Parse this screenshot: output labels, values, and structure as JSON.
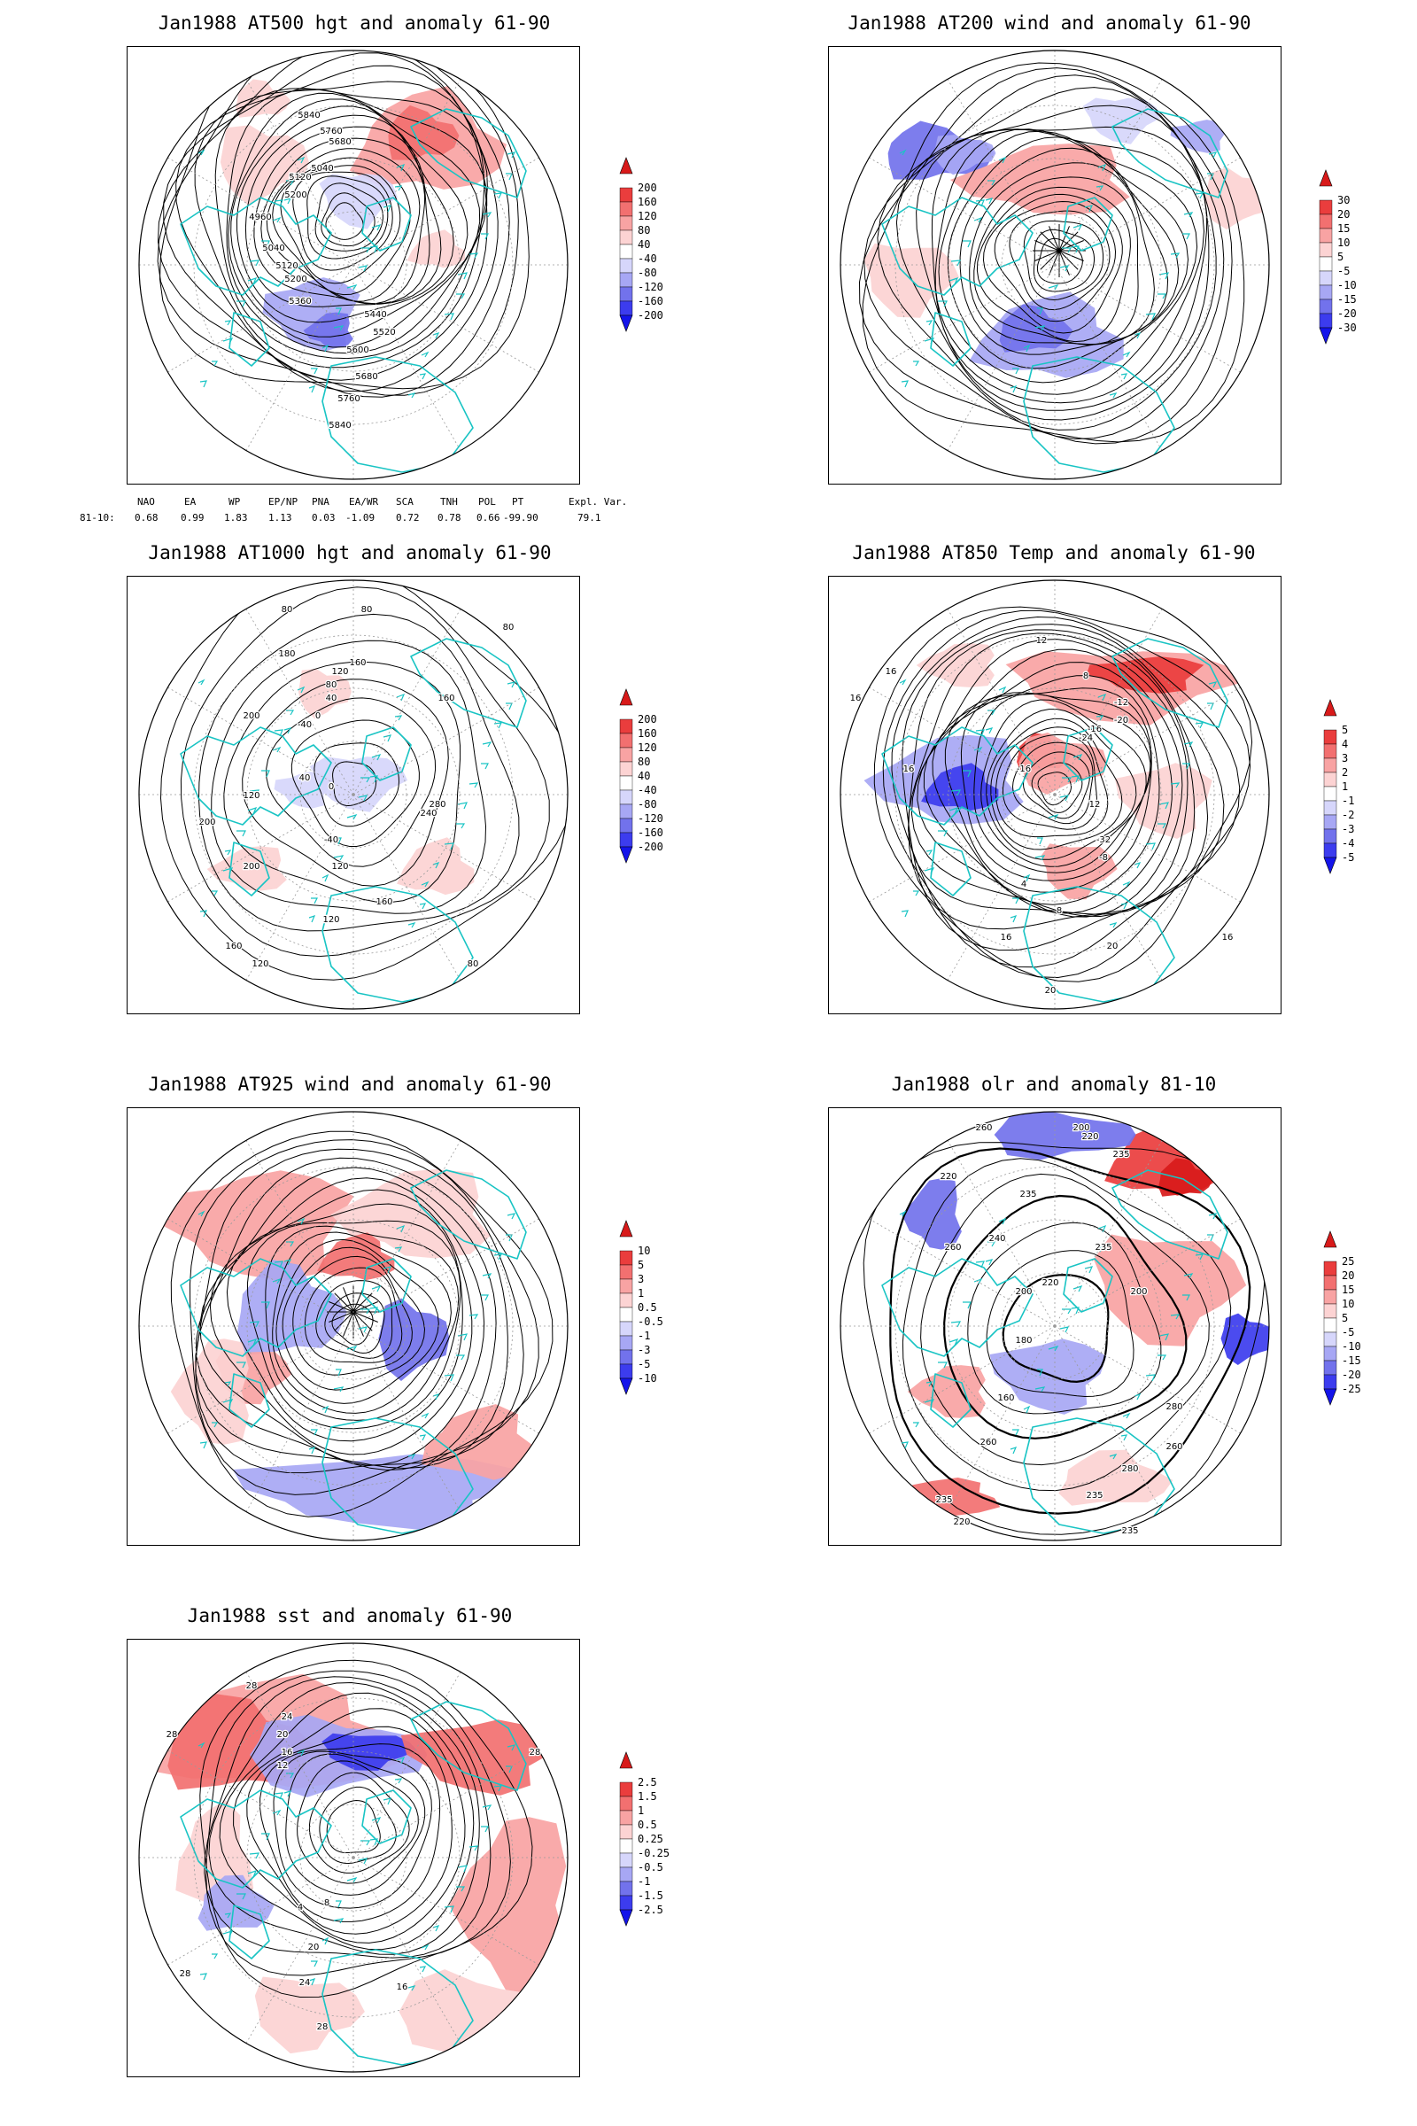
{
  "panels": [
    {
      "id": "z500",
      "title": "Jan1988 AT500 hgt and anomaly 61-90",
      "colorbar_labels": [
        "200",
        "160",
        "120",
        "80",
        "40",
        "-40",
        "-80",
        "-120",
        "-160",
        "-200"
      ],
      "colorbar_colors": [
        "#d81a1a",
        "#ea3d3d",
        "#f27070",
        "#f8a3a3",
        "#fcd3d3",
        "#ffffff",
        "#d6d6fb",
        "#a7a7f4",
        "#7272ec",
        "#3c3cee",
        "#1414ea"
      ],
      "contour_labels": [
        "5840",
        "5760",
        "5680",
        "5040",
        "5120",
        "5200",
        "4960",
        "5040",
        "5120",
        "5200",
        "5360",
        "5440",
        "5520",
        "5600",
        "5680",
        "5760",
        "5840"
      ]
    },
    {
      "id": "u200",
      "title": "Jan1988 AT200 wind and anomaly 61-90",
      "colorbar_labels": [
        "30",
        "20",
        "15",
        "10",
        "5",
        "-5",
        "-10",
        "-15",
        "-20",
        "-30"
      ],
      "colorbar_colors": [
        "#d81a1a",
        "#ea3d3d",
        "#f27070",
        "#f8a3a3",
        "#fcd3d3",
        "#ffffff",
        "#d6d6fb",
        "#a7a7f4",
        "#7272ec",
        "#3c3cee",
        "#1414ea"
      ],
      "contour_labels": []
    },
    {
      "id": "z1000",
      "title": "Jan1988 AT1000 hgt and anomaly 61-90",
      "colorbar_labels": [
        "200",
        "160",
        "120",
        "80",
        "40",
        "-40",
        "-80",
        "-120",
        "-160",
        "-200"
      ],
      "colorbar_colors": [
        "#d81a1a",
        "#ea3d3d",
        "#f27070",
        "#f8a3a3",
        "#fcd3d3",
        "#ffffff",
        "#d6d6fb",
        "#a7a7f4",
        "#7272ec",
        "#3c3cee",
        "#1414ea"
      ],
      "contour_labels": [
        "80",
        "80",
        "80",
        "180",
        "160",
        "120",
        "80",
        "40",
        "0",
        "-40",
        "160",
        "200",
        "120",
        "40",
        "200",
        "280",
        "240",
        "0",
        "-40",
        "120",
        "200",
        "160",
        "120",
        "160",
        "120",
        "80"
      ]
    },
    {
      "id": "t850",
      "title": "Jan1988 AT850 Temp and anomaly 61-90",
      "colorbar_labels": [
        "5",
        "4",
        "3",
        "2",
        "1",
        "-1",
        "-2",
        "-3",
        "-4",
        "-5"
      ],
      "colorbar_colors": [
        "#d81a1a",
        "#ea3d3d",
        "#f27070",
        "#f8a3a3",
        "#fcd3d3",
        "#ffffff",
        "#d6d6fb",
        "#a7a7f4",
        "#7272ec",
        "#3c3cee",
        "#1414ea"
      ],
      "contour_labels": [
        "12",
        "16",
        "8",
        "16",
        "-12",
        "-16",
        "-20",
        "-24",
        "-16",
        "16",
        "-32",
        "12",
        "-8",
        "4",
        "8",
        "16",
        "20",
        "16",
        "20"
      ]
    },
    {
      "id": "w925",
      "title": "Jan1988 AT925 wind and anomaly 61-90",
      "colorbar_labels": [
        "10",
        "5",
        "3",
        "1",
        "0.5",
        "-0.5",
        "-1",
        "-3",
        "-5",
        "-10"
      ],
      "colorbar_colors": [
        "#d81a1a",
        "#ea3d3d",
        "#f27070",
        "#f8a3a3",
        "#fcd3d3",
        "#ffffff",
        "#d6d6fb",
        "#a7a7f4",
        "#7272ec",
        "#3c3cee",
        "#1414ea"
      ],
      "contour_labels": []
    },
    {
      "id": "olr",
      "title": "Jan1988 olr and anomaly 81-10",
      "colorbar_labels": [
        "25",
        "20",
        "15",
        "10",
        "5",
        "-5",
        "-10",
        "-15",
        "-20",
        "-25"
      ],
      "colorbar_colors": [
        "#d81a1a",
        "#ea3d3d",
        "#f27070",
        "#f8a3a3",
        "#fcd3d3",
        "#ffffff",
        "#d6d6fb",
        "#a7a7f4",
        "#7272ec",
        "#3c3cee",
        "#1414ea"
      ],
      "contour_labels": [
        "260",
        "200",
        "220",
        "235",
        "235",
        "220",
        "260",
        "240",
        "235",
        "220",
        "200",
        "180",
        "160",
        "200",
        "280",
        "260",
        "235",
        "280",
        "260",
        "220",
        "235",
        "235"
      ]
    },
    {
      "id": "sst",
      "title": "Jan1988 sst and anomaly 61-90",
      "colorbar_labels": [
        "2.5",
        "1.5",
        "1",
        "0.5",
        "0.25",
        "-0.25",
        "-0.5",
        "-1",
        "-1.5",
        "-2.5"
      ],
      "colorbar_colors": [
        "#d81a1a",
        "#ea3d3d",
        "#f27070",
        "#f8a3a3",
        "#fcd3d3",
        "#ffffff",
        "#d6d6fb",
        "#a7a7f4",
        "#7272ec",
        "#3c3cee",
        "#1414ea"
      ],
      "contour_labels": [
        "28",
        "24",
        "20",
        "16",
        "12",
        "28",
        "28",
        "28",
        "4",
        "8",
        "20",
        "24",
        "28",
        "16"
      ]
    }
  ],
  "teleconnections": {
    "headers": [
      "NAO",
      "EA",
      "WP",
      "EP/NP",
      "PNA",
      "EA/WR",
      "SCA",
      "TNH",
      "POL",
      "PT",
      "Expl. Var."
    ],
    "row_label": "81-10:",
    "values": [
      "0.68",
      "0.99",
      "1.83",
      "1.13",
      "0.03",
      "-1.09",
      "0.72",
      "0.78",
      "0.66",
      "-99.90",
      "79.1"
    ]
  },
  "colors": {
    "coastline": "#19c4c4",
    "contour": "#000000",
    "grid": "#9a9a9a"
  }
}
